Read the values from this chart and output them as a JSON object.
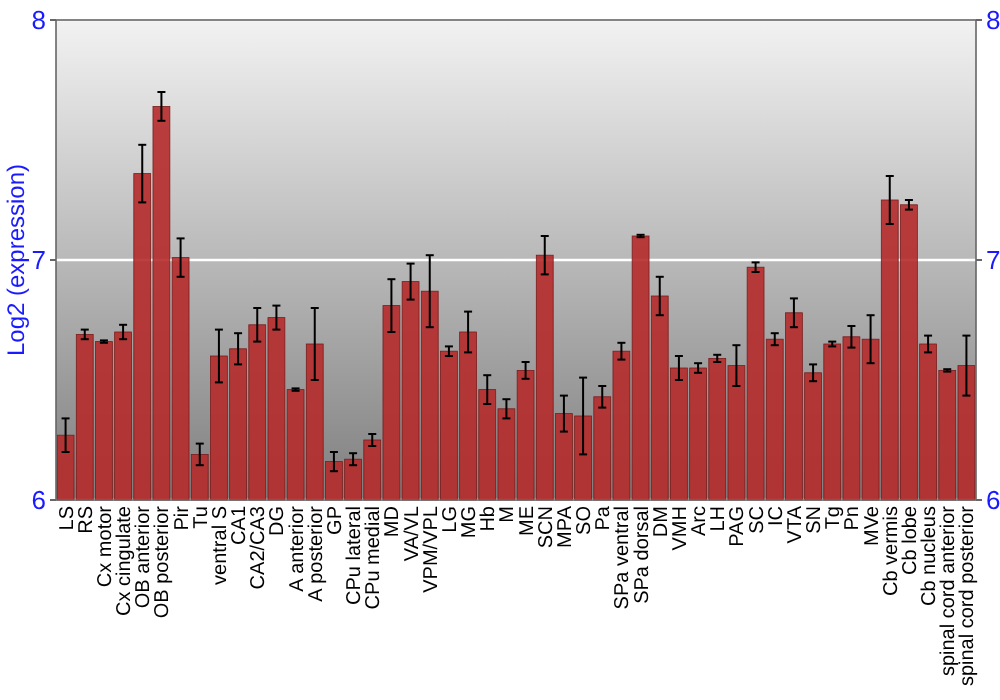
{
  "chart_data": {
    "type": "bar",
    "ylabel": "Log2 (expression)",
    "color": "#b52b2b",
    "grid": "y",
    "ylim": [
      6,
      8
    ],
    "yticks": [
      6,
      7,
      8
    ],
    "y2lim": [
      6,
      8
    ],
    "y2ticks": [
      6,
      7,
      8
    ],
    "categories": [
      "LS",
      "RS",
      "Cx motor",
      "Cx cingulate",
      "OB anterior",
      "OB posterior",
      "Pir",
      "Tu",
      "ventral S",
      "CA1",
      "CA2/CA3",
      "DG",
      "A anterior",
      "A posterior",
      "GP",
      "CPu lateral",
      "CPu medial",
      "MD",
      "VA/VL",
      "VPM/VPL",
      "LG",
      "MG",
      "Hb",
      "M",
      "ME",
      "SCN",
      "MPA",
      "SO",
      "Pa",
      "SPa ventral",
      "SPa dorsal",
      "DM",
      "VMH",
      "Arc",
      "LH",
      "PAG",
      "SC",
      "IC",
      "VTA",
      "SN",
      "Tg",
      "Pn",
      "MVe",
      "Cb vermis",
      "Cb lobe",
      "Cb nucleus",
      "spinal cord anterior",
      "spinal cord posterior"
    ],
    "values": [
      6.27,
      6.69,
      6.66,
      6.7,
      7.36,
      7.64,
      7.01,
      6.19,
      6.6,
      6.63,
      6.73,
      6.76,
      6.46,
      6.65,
      6.16,
      6.17,
      6.25,
      6.81,
      6.91,
      6.87,
      6.62,
      6.7,
      6.46,
      6.38,
      6.54,
      7.02,
      6.36,
      6.35,
      6.43,
      6.62,
      7.1,
      6.85,
      6.55,
      6.55,
      6.59,
      6.56,
      6.97,
      6.67,
      6.78,
      6.53,
      6.65,
      6.68,
      6.67,
      7.25,
      7.23,
      6.65,
      6.54,
      6.56
    ],
    "errors": [
      0.07,
      0.02,
      0.005,
      0.03,
      0.12,
      0.06,
      0.08,
      0.045,
      0.11,
      0.065,
      0.07,
      0.05,
      0.005,
      0.15,
      0.04,
      0.025,
      0.025,
      0.11,
      0.075,
      0.15,
      0.02,
      0.085,
      0.06,
      0.04,
      0.035,
      0.08,
      0.075,
      0.16,
      0.045,
      0.035,
      0.005,
      0.08,
      0.05,
      0.02,
      0.015,
      0.085,
      0.02,
      0.025,
      0.06,
      0.035,
      0.01,
      0.045,
      0.1,
      0.1,
      0.02,
      0.035,
      0.005,
      0.125
    ]
  }
}
